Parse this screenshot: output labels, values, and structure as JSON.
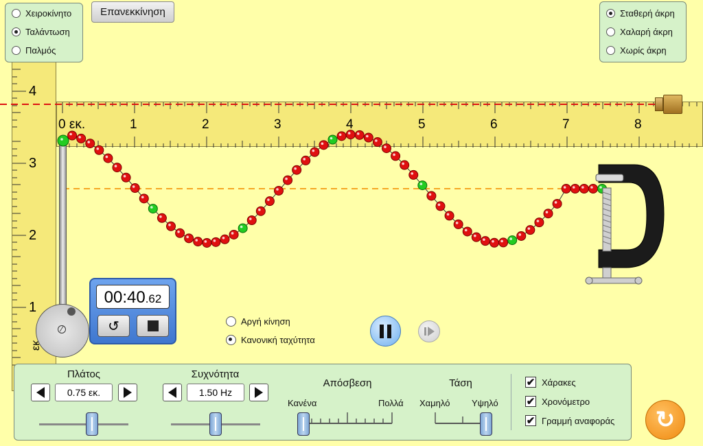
{
  "mode_panel": {
    "options": [
      {
        "label": "Χειροκίνητο",
        "selected": false
      },
      {
        "label": "Ταλάντωση",
        "selected": true
      },
      {
        "label": "Παλμός",
        "selected": false
      }
    ]
  },
  "restart_label": "Επανεκκίνηση",
  "end_panel": {
    "options": [
      {
        "label": "Σταθερή άκρη",
        "selected": true
      },
      {
        "label": "Χαλαρή άκρη",
        "selected": false
      },
      {
        "label": "Χωρίς άκρη",
        "selected": false
      }
    ]
  },
  "horizontal_ruler": {
    "ticks": [
      "0 εκ.",
      "1",
      "2",
      "3",
      "4",
      "5",
      "6",
      "7",
      "8"
    ]
  },
  "vertical_ruler": {
    "ticks": [
      "4",
      "3",
      "2",
      "1"
    ],
    "unit_label": "εκ."
  },
  "stopwatch": {
    "time_main": "00:40",
    "time_fraction": ".62",
    "reset_icon": "undo-icon",
    "stop_icon": "stop-icon"
  },
  "speed": {
    "options": [
      {
        "label": "Αργή κίνηση",
        "selected": false
      },
      {
        "label": "Κανονική ταχύτητα",
        "selected": true
      }
    ]
  },
  "playback": {
    "pause_icon": "pause-icon",
    "step_icon": "step-forward-icon"
  },
  "controls": {
    "amplitude": {
      "title": "Πλάτος",
      "value": "0.75 εκ."
    },
    "frequency": {
      "title": "Συχνότητα",
      "value": "1.50 Hz"
    },
    "damping": {
      "title": "Απόσβεση",
      "min_label": "Κανένα",
      "max_label": "Πολλά"
    },
    "tension": {
      "title": "Τάση",
      "min_label": "Χαμηλό",
      "max_label": "Υψηλό"
    }
  },
  "checkboxes": [
    {
      "label": "Χάρακες",
      "checked": true
    },
    {
      "label": "Χρονόμετρο",
      "checked": true
    },
    {
      "label": "Γραμμή αναφοράς",
      "checked": true
    }
  ],
  "colors": {
    "background": "#ffffa9",
    "panel": "#d6f2c9",
    "ruler": "#f5e97a",
    "bead": "#e01010",
    "bead_highlight": "#22cc22",
    "reference_line": "#dd1111",
    "equilibrium_line": "#f5a623",
    "reset_all": "#f79a1e"
  }
}
